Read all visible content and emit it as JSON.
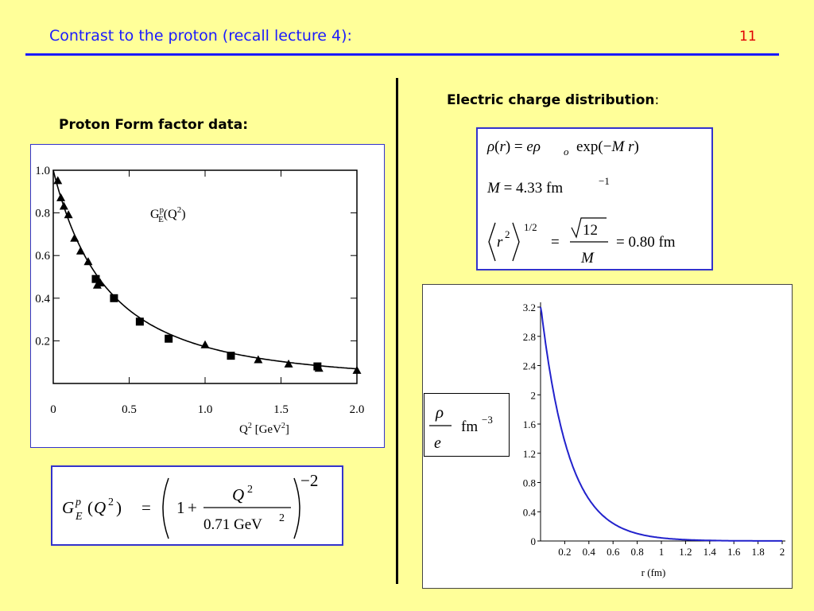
{
  "slide": {
    "title": "Contrast to the proton (recall lecture 4):",
    "number": "11",
    "left_heading": "Proton Form factor data:",
    "right_heading": "Electric charge distribution",
    "right_heading_colon": ":"
  },
  "colors": {
    "background": "#ffff99",
    "title": "#1a1aff",
    "number": "#e00000",
    "curve": "#2222cc"
  },
  "formulas": {
    "rho_line1": "ρ(r) = eρ₀ exp(−M r)",
    "M_line": "M = 4.33 fm⁻¹",
    "radius_line": "⟨r²⟩^(1/2) = √12 / M = 0.80 fm",
    "ge_formula": "G_E^p(Q²) = (1 + Q² / 0.71 GeV²)^−2",
    "rho_over_e_label": "ρ/e fm⁻³"
  },
  "chart_data": [
    {
      "type": "scatter",
      "xlabel": "Q² [GeV²]",
      "ylabel": "",
      "series_label": "G_E^p(Q²)",
      "xlim": [
        0,
        2.0
      ],
      "ylim": [
        0,
        1.0
      ],
      "x_ticks": [
        "0",
        "0.5",
        "1.0",
        "1.5",
        "2.0"
      ],
      "y_ticks": [
        "0.2",
        "0.4",
        "0.6",
        "0.8",
        "1.0"
      ],
      "series": [
        {
          "marker": "triangle",
          "x": [
            0.03,
            0.05,
            0.07,
            0.1,
            0.14,
            0.18,
            0.23,
            0.29,
            0.31,
            1.0,
            1.35,
            1.55,
            1.75,
            2.0
          ],
          "y": [
            0.95,
            0.87,
            0.83,
            0.79,
            0.68,
            0.62,
            0.57,
            0.46,
            0.47,
            0.18,
            0.11,
            0.09,
            0.07,
            0.06
          ]
        },
        {
          "marker": "square",
          "x": [
            0.28,
            0.4,
            0.57,
            0.76,
            1.17,
            1.74
          ],
          "y": [
            0.49,
            0.4,
            0.29,
            0.21,
            0.13,
            0.08
          ]
        }
      ],
      "fit_curve": "G_E = (1 + Q²/0.71)^-2",
      "grid": false
    },
    {
      "type": "line",
      "xlabel": "r (fm)",
      "ylabel": "",
      "xlim": [
        0,
        2
      ],
      "ylim": [
        0,
        3.2
      ],
      "x_ticks": [
        "0.2",
        "0.4",
        "0.6",
        "0.8",
        "1",
        "1.2",
        "1.4",
        "1.6",
        "1.8",
        "2"
      ],
      "y_ticks": [
        "0",
        "0.4",
        "0.8",
        "1.2",
        "1.6",
        "2",
        "2.4",
        "2.8",
        "3.2"
      ],
      "function": "ρ/e = 3.24·exp(−4.33 r)",
      "grid": false
    }
  ]
}
